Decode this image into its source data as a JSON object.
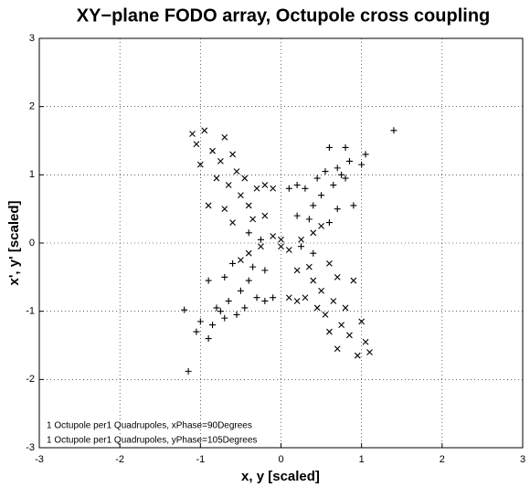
{
  "chart_data": {
    "type": "scatter",
    "title": "XY−plane FODO array, Octupole cross coupling",
    "xlabel": "x, y [scaled]",
    "ylabel": "x', y' [scaled]",
    "xlim": [
      -3,
      3
    ],
    "ylim": [
      -3,
      3
    ],
    "xticks": [
      -3,
      -2,
      -1,
      0,
      1,
      2,
      3
    ],
    "yticks": [
      -3,
      -2,
      -1,
      0,
      1,
      2,
      3
    ],
    "grid": true,
    "legend": "lower left",
    "series": [
      {
        "name": "1 Octupole per1 Quadrupoles, xPhase=90Degrees",
        "marker": "x",
        "color": "#000000",
        "x": [
          -1.1,
          -0.95,
          -1.05,
          -0.85,
          -0.7,
          -0.75,
          -1.0,
          -0.6,
          -0.55,
          -0.8,
          -0.65,
          -0.45,
          -0.9,
          -0.7,
          -0.5,
          -0.4,
          -0.3,
          -0.2,
          -0.1,
          -0.35,
          -0.2,
          -0.6,
          -0.1,
          0.0,
          1.1,
          0.95,
          1.05,
          0.85,
          0.7,
          0.75,
          1.0,
          0.6,
          0.55,
          0.8,
          0.65,
          0.45,
          0.9,
          0.7,
          0.5,
          0.4,
          0.3,
          0.2,
          0.1,
          0.35,
          0.2,
          0.6,
          0.1,
          0.0,
          -0.25,
          0.25,
          0.4,
          -0.4,
          0.5,
          -0.5
        ],
        "y": [
          1.6,
          1.65,
          1.45,
          1.35,
          1.55,
          1.2,
          1.15,
          1.3,
          1.05,
          0.95,
          0.85,
          0.95,
          0.55,
          0.5,
          0.7,
          0.55,
          0.8,
          0.85,
          0.8,
          0.35,
          0.4,
          0.3,
          0.1,
          0.05,
          -1.6,
          -1.65,
          -1.45,
          -1.35,
          -1.55,
          -1.2,
          -1.15,
          -1.3,
          -1.05,
          -0.95,
          -0.85,
          -0.95,
          -0.55,
          -0.5,
          -0.7,
          -0.55,
          -0.8,
          -0.85,
          -0.8,
          -0.35,
          -0.4,
          -0.3,
          -0.1,
          -0.05,
          -0.05,
          0.05,
          0.15,
          -0.15,
          0.25,
          -0.25
        ]
      },
      {
        "name": "1 Octupole per1 Quadrupoles, yPhase=105Degrees",
        "marker": "+",
        "color": "#000000",
        "x": [
          1.4,
          0.8,
          0.6,
          1.05,
          0.85,
          0.7,
          0.75,
          1.0,
          0.55,
          0.8,
          0.65,
          0.45,
          0.9,
          0.7,
          0.5,
          0.4,
          0.3,
          0.2,
          0.1,
          0.35,
          0.2,
          0.6,
          -1.15,
          -1.2,
          -0.9,
          -1.05,
          -0.85,
          -0.7,
          -0.75,
          -1.0,
          -0.55,
          -0.8,
          -0.65,
          -0.45,
          -0.9,
          -0.7,
          -0.5,
          -0.4,
          -0.3,
          -0.2,
          -0.1,
          -0.35,
          -0.2,
          -0.6,
          -0.25,
          0.25,
          -0.4,
          0.4
        ],
        "y": [
          1.65,
          1.4,
          1.4,
          1.3,
          1.2,
          1.1,
          1.0,
          1.15,
          1.05,
          0.95,
          0.85,
          0.95,
          0.55,
          0.5,
          0.7,
          0.55,
          0.8,
          0.85,
          0.8,
          0.35,
          0.4,
          0.3,
          -1.88,
          -0.98,
          -1.4,
          -1.3,
          -1.2,
          -1.1,
          -1.0,
          -1.15,
          -1.05,
          -0.95,
          -0.85,
          -0.95,
          -0.55,
          -0.5,
          -0.7,
          -0.55,
          -0.8,
          -0.85,
          -0.8,
          -0.35,
          -0.4,
          -0.3,
          0.05,
          -0.05,
          0.15,
          -0.15
        ]
      }
    ]
  }
}
